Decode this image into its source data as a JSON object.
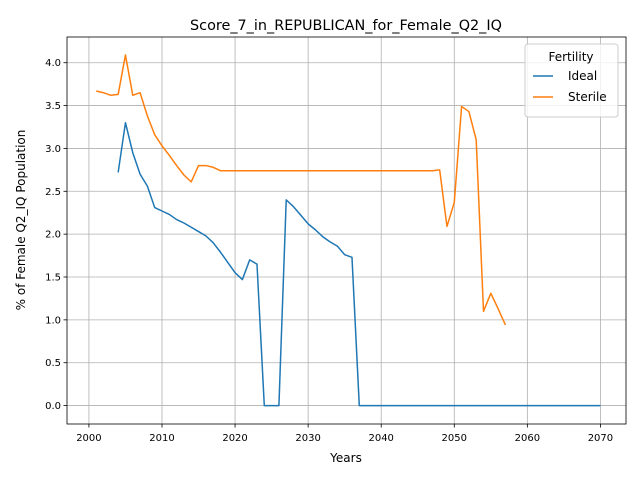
{
  "chart_data": {
    "type": "line",
    "title": "Score_7_in_REPUBLICAN_for_Female_Q2_IQ",
    "xlabel": "Years",
    "ylabel": "% of Female Q2_IQ Population",
    "xlim": [
      1997,
      2073.5
    ],
    "ylim": [
      -0.215,
      4.3
    ],
    "xticks": [
      2000,
      2010,
      2020,
      2030,
      2040,
      2050,
      2060,
      2070
    ],
    "yticks": [
      0.0,
      0.5,
      1.0,
      1.5,
      2.0,
      2.5,
      3.0,
      3.5,
      4.0
    ],
    "xtick_labels": [
      "2000",
      "2010",
      "2020",
      "2030",
      "2040",
      "2050",
      "2060",
      "2070"
    ],
    "ytick_labels": [
      "0.0",
      "0.5",
      "1.0",
      "1.5",
      "2.0",
      "2.5",
      "3.0",
      "3.5",
      "4.0"
    ],
    "grid": true,
    "legend": {
      "title": "Fertility",
      "placement": "top-right"
    },
    "series": [
      {
        "name": "Ideal",
        "color": "#1f77b4",
        "points": [
          [
            2004,
            2.72
          ],
          [
            2005,
            3.3
          ],
          [
            2006,
            2.95
          ],
          [
            2007,
            2.7
          ],
          [
            2008,
            2.56
          ],
          [
            2009,
            2.31
          ],
          [
            2010,
            2.27
          ],
          [
            2011,
            2.23
          ],
          [
            2012,
            2.17
          ],
          [
            2013,
            2.13
          ],
          [
            2014,
            2.08
          ],
          [
            2015,
            2.03
          ],
          [
            2016,
            1.98
          ],
          [
            2017,
            1.9
          ],
          [
            2018,
            1.79
          ],
          [
            2019,
            1.67
          ],
          [
            2020,
            1.55
          ],
          [
            2021,
            1.47
          ],
          [
            2022,
            1.7
          ],
          [
            2023,
            1.65
          ],
          [
            2024,
            0.0
          ],
          [
            2025,
            0.0
          ],
          [
            2026,
            0.0
          ],
          [
            2027,
            2.4
          ],
          [
            2028,
            2.32
          ],
          [
            2029,
            2.22
          ],
          [
            2030,
            2.12
          ],
          [
            2031,
            2.05
          ],
          [
            2032,
            1.97
          ],
          [
            2033,
            1.91
          ],
          [
            2034,
            1.86
          ],
          [
            2035,
            1.76
          ],
          [
            2036,
            1.73
          ],
          [
            2037,
            0.0
          ],
          [
            2040,
            0.0
          ],
          [
            2050,
            0.0
          ],
          [
            2060,
            0.0
          ],
          [
            2070,
            0.0
          ]
        ]
      },
      {
        "name": "Sterile",
        "color": "#ff7f0e",
        "points": [
          [
            2001,
            3.67
          ],
          [
            2002,
            3.65
          ],
          [
            2003,
            3.62
          ],
          [
            2004,
            3.63
          ],
          [
            2005,
            4.09
          ],
          [
            2006,
            3.62
          ],
          [
            2007,
            3.65
          ],
          [
            2008,
            3.38
          ],
          [
            2009,
            3.16
          ],
          [
            2010,
            3.03
          ],
          [
            2011,
            2.92
          ],
          [
            2012,
            2.8
          ],
          [
            2013,
            2.69
          ],
          [
            2014,
            2.61
          ],
          [
            2015,
            2.8
          ],
          [
            2016,
            2.8
          ],
          [
            2017,
            2.78
          ],
          [
            2018,
            2.74
          ],
          [
            2020,
            2.74
          ],
          [
            2030,
            2.74
          ],
          [
            2040,
            2.74
          ],
          [
            2047,
            2.74
          ],
          [
            2048,
            2.75
          ],
          [
            2049,
            2.09
          ],
          [
            2050,
            2.37
          ],
          [
            2051,
            3.49
          ],
          [
            2052,
            3.43
          ],
          [
            2053,
            3.1
          ],
          [
            2054,
            1.1
          ],
          [
            2055,
            1.31
          ],
          [
            2056,
            1.13
          ],
          [
            2057,
            0.94
          ]
        ]
      }
    ]
  }
}
